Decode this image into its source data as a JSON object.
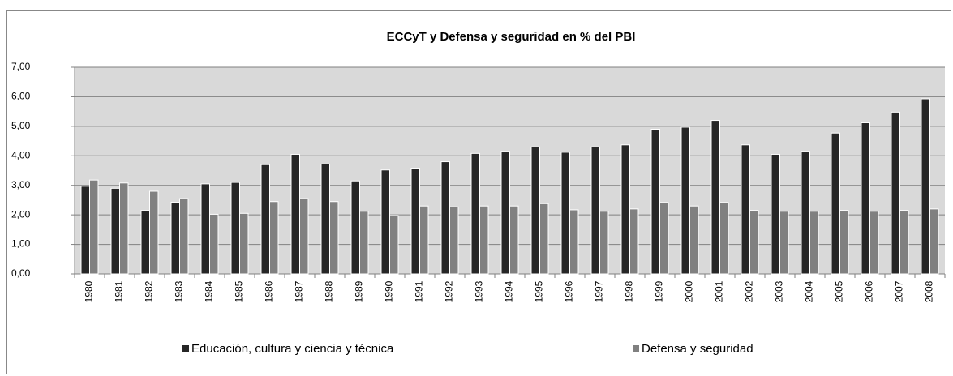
{
  "chart_data": {
    "type": "bar",
    "title": "ECCyT y Defensa y seguridad en % del PBI",
    "categories": [
      "1980",
      "1981",
      "1982",
      "1983",
      "1984",
      "1985",
      "1986",
      "1987",
      "1988",
      "1989",
      "1990",
      "1991",
      "1992",
      "1993",
      "1994",
      "1995",
      "1996",
      "1997",
      "1998",
      "1999",
      "2000",
      "2001",
      "2002",
      "2003",
      "2004",
      "2005",
      "2006",
      "2007",
      "2008"
    ],
    "series": [
      {
        "name": "Educación, cultura y ciencia y técnica",
        "color": "#262626",
        "values": [
          2.97,
          2.9,
          2.15,
          2.43,
          3.05,
          3.1,
          3.7,
          4.05,
          3.72,
          3.15,
          3.52,
          3.58,
          3.8,
          4.08,
          4.15,
          4.3,
          4.12,
          4.3,
          4.37,
          4.9,
          4.97,
          5.2,
          4.37,
          4.05,
          4.15,
          4.77,
          5.12,
          5.48,
          5.93
        ]
      },
      {
        "name": "Defensa y seguridad",
        "color": "#808080",
        "values": [
          3.18,
          3.08,
          2.8,
          2.55,
          2.02,
          2.05,
          2.45,
          2.55,
          2.45,
          2.12,
          1.98,
          2.3,
          2.27,
          2.3,
          2.3,
          2.38,
          2.17,
          2.12,
          2.2,
          2.42,
          2.3,
          2.42,
          2.15,
          2.12,
          2.12,
          2.15,
          2.12,
          2.15,
          2.2
        ]
      }
    ],
    "ylim": [
      0,
      7
    ],
    "yticks": [
      {
        "value": 0,
        "label": "0,00"
      },
      {
        "value": 1,
        "label": "1,00"
      },
      {
        "value": 2,
        "label": "2,00"
      },
      {
        "value": 3,
        "label": "3,00"
      },
      {
        "value": 4,
        "label": "4,00"
      },
      {
        "value": 5,
        "label": "5,00"
      },
      {
        "value": 6,
        "label": "6,00"
      },
      {
        "value": 7,
        "label": "7,00"
      }
    ],
    "grid": true,
    "legend": "bottom"
  }
}
